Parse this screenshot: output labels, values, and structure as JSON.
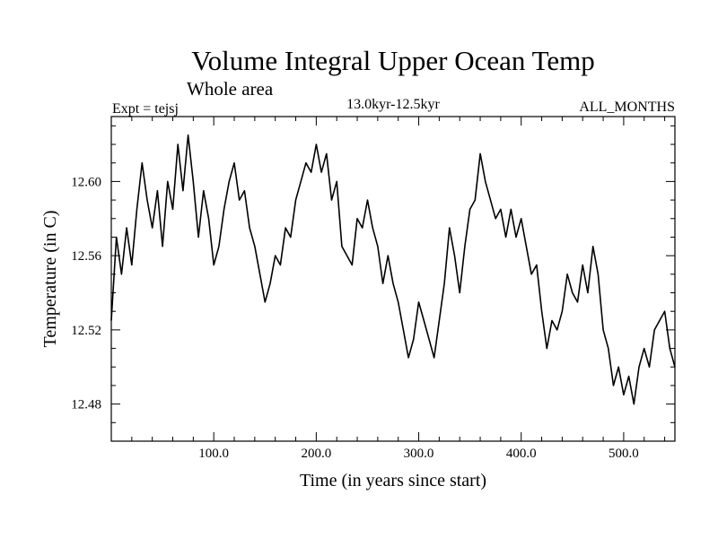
{
  "chart_data": {
    "type": "line",
    "title": "Volume Integral Upper Ocean Temp",
    "subtitle": "Whole area",
    "left_label": "Expt = tejsj",
    "center_label": "13.0kyr-12.5kyr",
    "right_label": "ALL_MONTHS",
    "xlabel": "Time (in years since start)",
    "ylabel": "Temperature (in C)",
    "xlim": [
      0,
      550
    ],
    "ylim": [
      12.46,
      12.635
    ],
    "x_major_ticks": [
      100,
      200,
      300,
      400,
      500
    ],
    "x_tick_labels": [
      "100.0",
      "200.0",
      "300.0",
      "400.0",
      "500.0"
    ],
    "y_major_ticks": [
      12.48,
      12.52,
      12.56,
      12.6
    ],
    "y_tick_labels": [
      "12.48",
      "12.52",
      "12.56",
      "12.60"
    ],
    "series": [
      {
        "name": "Volume Integral Upper Ocean Temp",
        "color": "#000000",
        "x": [
          0,
          5,
          10,
          15,
          20,
          25,
          30,
          35,
          40,
          45,
          50,
          55,
          60,
          65,
          70,
          75,
          80,
          85,
          90,
          95,
          100,
          105,
          110,
          115,
          120,
          125,
          130,
          135,
          140,
          145,
          150,
          155,
          160,
          165,
          170,
          175,
          180,
          185,
          190,
          195,
          200,
          205,
          210,
          215,
          220,
          225,
          230,
          235,
          240,
          245,
          250,
          255,
          260,
          265,
          270,
          275,
          280,
          285,
          290,
          295,
          300,
          305,
          310,
          315,
          320,
          325,
          330,
          335,
          340,
          345,
          350,
          355,
          360,
          365,
          370,
          375,
          380,
          385,
          390,
          395,
          400,
          405,
          410,
          415,
          420,
          425,
          430,
          435,
          440,
          445,
          450,
          455,
          460,
          465,
          470,
          475,
          480,
          485,
          490,
          495,
          500,
          505,
          510,
          515,
          520,
          525,
          530,
          535,
          540,
          545,
          550
        ],
        "values": [
          12.525,
          12.57,
          12.55,
          12.575,
          12.555,
          12.585,
          12.61,
          12.59,
          12.575,
          12.595,
          12.565,
          12.6,
          12.585,
          12.62,
          12.595,
          12.625,
          12.6,
          12.57,
          12.595,
          12.58,
          12.555,
          12.565,
          12.585,
          12.6,
          12.61,
          12.59,
          12.595,
          12.575,
          12.565,
          12.55,
          12.535,
          12.545,
          12.56,
          12.555,
          12.575,
          12.57,
          12.59,
          12.6,
          12.61,
          12.605,
          12.62,
          12.605,
          12.615,
          12.59,
          12.6,
          12.565,
          12.56,
          12.555,
          12.58,
          12.575,
          12.59,
          12.575,
          12.565,
          12.545,
          12.56,
          12.545,
          12.535,
          12.52,
          12.505,
          12.515,
          12.535,
          12.525,
          12.515,
          12.505,
          12.525,
          12.545,
          12.575,
          12.56,
          12.54,
          12.565,
          12.585,
          12.59,
          12.615,
          12.6,
          12.59,
          12.58,
          12.585,
          12.57,
          12.585,
          12.57,
          12.58,
          12.565,
          12.55,
          12.555,
          12.53,
          12.51,
          12.525,
          12.52,
          12.53,
          12.55,
          12.54,
          12.535,
          12.555,
          12.54,
          12.565,
          12.55,
          12.52,
          12.51,
          12.49,
          12.5,
          12.485,
          12.495,
          12.48,
          12.5,
          12.51,
          12.5,
          12.52,
          12.525,
          12.53,
          12.51,
          12.5
        ]
      }
    ]
  }
}
